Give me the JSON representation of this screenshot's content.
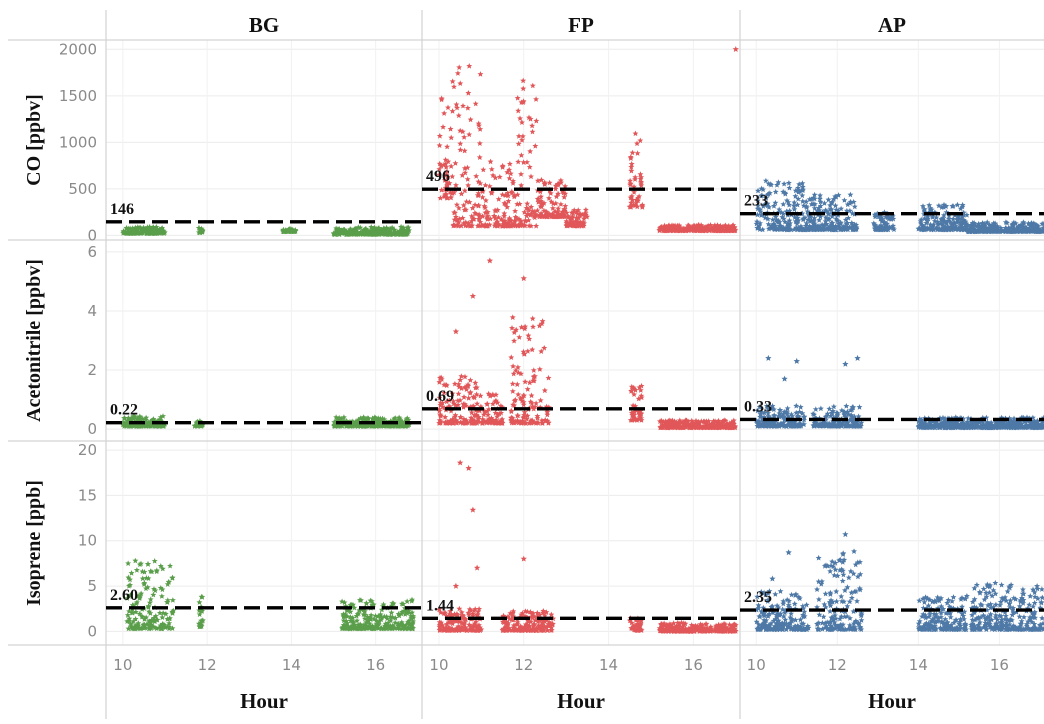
{
  "chart_data": {
    "type": "scatter",
    "facet_columns": [
      "BG",
      "FP",
      "AP"
    ],
    "xlabel": "Hour",
    "x_ticks": [
      10,
      12,
      14,
      16
    ],
    "xlim": [
      9.6,
      17.1
    ],
    "grid": true,
    "colors": {
      "BG": "#5a9e4b",
      "FP": "#e15759",
      "AP": "#4e79a7",
      "reference_line": "#000000"
    },
    "rows": [
      {
        "ylabel": "CO [ppbv]",
        "ylim": [
          -50,
          2100
        ],
        "y_ticks": [
          0,
          500,
          1000,
          1500,
          2000
        ],
        "panels": [
          {
            "column": "BG",
            "reference": {
              "value": 146,
              "label": "146"
            },
            "clusters": [
              {
                "x": [
                  10.0,
                  11.0
                ],
                "y": [
                  20,
                  90
                ]
              },
              {
                "x": [
                  11.8,
                  11.9
                ],
                "y": [
                  30,
                  80
                ]
              },
              {
                "x": [
                  13.8,
                  14.1
                ],
                "y": [
                  40,
                  70
                ]
              },
              {
                "x": [
                  15.0,
                  16.8
                ],
                "y": [
                  10,
                  90
                ]
              }
            ]
          },
          {
            "column": "FP",
            "reference": {
              "value": 496,
              "label": "496"
            },
            "clusters": [
              {
                "x": [
                  10.0,
                  10.3
                ],
                "y": [
                  400,
                  1550
                ]
              },
              {
                "x": [
                  10.3,
                  11.0
                ],
                "y": [
                  100,
                  2000
                ]
              },
              {
                "x": [
                  11.0,
                  11.8
                ],
                "y": [
                  100,
                  800
                ]
              },
              {
                "x": [
                  11.8,
                  12.3
                ],
                "y": [
                  100,
                  2050
                ]
              },
              {
                "x": [
                  12.3,
                  13.0
                ],
                "y": [
                  200,
                  600
                ]
              },
              {
                "x": [
                  13.0,
                  13.5
                ],
                "y": [
                  100,
                  300
                ]
              },
              {
                "x": [
                  14.5,
                  14.8
                ],
                "y": [
                  300,
                  1100
                ]
              },
              {
                "x": [
                  15.2,
                  17.0
                ],
                "y": [
                  50,
                  110
                ]
              }
            ],
            "outliers": [
              {
                "x": 17.0,
                "y": 2000
              }
            ]
          },
          {
            "column": "AP",
            "reference": {
              "value": 233,
              "label": "233"
            },
            "clusters": [
              {
                "x": [
                  10.0,
                  11.2
                ],
                "y": [
                  60,
                  600
                ]
              },
              {
                "x": [
                  11.2,
                  12.5
                ],
                "y": [
                  60,
                  440
                ]
              },
              {
                "x": [
                  12.9,
                  13.4
                ],
                "y": [
                  60,
                  250
                ]
              },
              {
                "x": [
                  14.0,
                  15.2
                ],
                "y": [
                  60,
                  330
                ]
              },
              {
                "x": [
                  15.2,
                  17.1
                ],
                "y": [
                  40,
                  140
                ]
              }
            ]
          }
        ]
      },
      {
        "ylabel": "Acetonitrile [ppbv]",
        "ylim": [
          -0.4,
          6.4
        ],
        "y_ticks": [
          0,
          2,
          4,
          6
        ],
        "panels": [
          {
            "column": "BG",
            "reference": {
              "value": 0.22,
              "label": "0.22"
            },
            "clusters": [
              {
                "x": [
                  10.0,
                  11.0
                ],
                "y": [
                  0.1,
                  0.45
                ]
              },
              {
                "x": [
                  11.7,
                  11.9
                ],
                "y": [
                  0.1,
                  0.3
                ]
              },
              {
                "x": [
                  15.0,
                  16.8
                ],
                "y": [
                  0.1,
                  0.4
                ]
              }
            ]
          },
          {
            "column": "FP",
            "reference": {
              "value": 0.69,
              "label": "0.69"
            },
            "clusters": [
              {
                "x": [
                  10.0,
                  11.0
                ],
                "y": [
                  0.2,
                  1.8
                ]
              },
              {
                "x": [
                  11.0,
                  11.5
                ],
                "y": [
                  0.2,
                  1.2
                ]
              },
              {
                "x": [
                  11.7,
                  12.6
                ],
                "y": [
                  0.2,
                  3.8
                ]
              },
              {
                "x": [
                  14.5,
                  14.8
                ],
                "y": [
                  0.3,
                  1.5
                ]
              },
              {
                "x": [
                  15.2,
                  17.0
                ],
                "y": [
                  0.05,
                  0.3
                ]
              }
            ],
            "outliers": [
              {
                "x": 10.8,
                "y": 4.5
              },
              {
                "x": 11.2,
                "y": 5.7
              },
              {
                "x": 12.0,
                "y": 5.1
              },
              {
                "x": 10.4,
                "y": 3.3
              }
            ]
          },
          {
            "column": "AP",
            "reference": {
              "value": 0.33,
              "label": "0.33"
            },
            "clusters": [
              {
                "x": [
                  10.0,
                  11.2
                ],
                "y": [
                  0.1,
                  0.8
                ]
              },
              {
                "x": [
                  11.4,
                  12.6
                ],
                "y": [
                  0.1,
                  0.8
                ]
              },
              {
                "x": [
                  14.0,
                  17.1
                ],
                "y": [
                  0.05,
                  0.4
                ]
              }
            ],
            "outliers": [
              {
                "x": 10.3,
                "y": 2.4
              },
              {
                "x": 11.0,
                "y": 2.3
              },
              {
                "x": 12.2,
                "y": 2.2
              },
              {
                "x": 12.5,
                "y": 2.4
              },
              {
                "x": 10.7,
                "y": 1.7
              }
            ]
          }
        ]
      },
      {
        "ylabel": "Isoprene [ppb]",
        "ylim": [
          -1.5,
          21
        ],
        "y_ticks": [
          0,
          5,
          10,
          15,
          20
        ],
        "panels": [
          {
            "column": "BG",
            "reference": {
              "value": 2.6,
              "label": "2.60"
            },
            "clusters": [
              {
                "x": [
                  10.1,
                  11.2
                ],
                "y": [
                  0.3,
                  7.8
                ]
              },
              {
                "x": [
                  11.8,
                  11.9
                ],
                "y": [
                  0.5,
                  4.0
                ]
              },
              {
                "x": [
                  15.2,
                  16.9
                ],
                "y": [
                  0.3,
                  3.5
                ]
              }
            ]
          },
          {
            "column": "FP",
            "reference": {
              "value": 1.44,
              "label": "1.44"
            },
            "clusters": [
              {
                "x": [
                  10.0,
                  11.0
                ],
                "y": [
                  0.1,
                  2.5
                ]
              },
              {
                "x": [
                  11.5,
                  12.7
                ],
                "y": [
                  0.1,
                  2.3
                ]
              },
              {
                "x": [
                  14.5,
                  14.8
                ],
                "y": [
                  0.1,
                  1.5
                ]
              },
              {
                "x": [
                  15.2,
                  17.0
                ],
                "y": [
                  0.0,
                  1.0
                ]
              }
            ],
            "outliers": [
              {
                "x": 10.5,
                "y": 18.6
              },
              {
                "x": 10.7,
                "y": 18.0
              },
              {
                "x": 10.8,
                "y": 13.4
              },
              {
                "x": 10.9,
                "y": 7.0
              },
              {
                "x": 12.0,
                "y": 8.0
              },
              {
                "x": 10.4,
                "y": 5.0
              }
            ]
          },
          {
            "column": "AP",
            "reference": {
              "value": 2.35,
              "label": "2.35"
            },
            "clusters": [
              {
                "x": [
                  10.0,
                  11.3
                ],
                "y": [
                  0.2,
                  4.5
                ]
              },
              {
                "x": [
                  11.5,
                  12.6
                ],
                "y": [
                  0.2,
                  9.0
                ]
              },
              {
                "x": [
                  14.0,
                  15.2
                ],
                "y": [
                  0.2,
                  4.0
                ]
              },
              {
                "x": [
                  15.3,
                  17.1
                ],
                "y": [
                  0.2,
                  5.5
                ]
              }
            ],
            "outliers": [
              {
                "x": 10.8,
                "y": 8.7
              },
              {
                "x": 12.2,
                "y": 10.7
              },
              {
                "x": 10.4,
                "y": 5.8
              }
            ]
          }
        ]
      }
    ]
  }
}
